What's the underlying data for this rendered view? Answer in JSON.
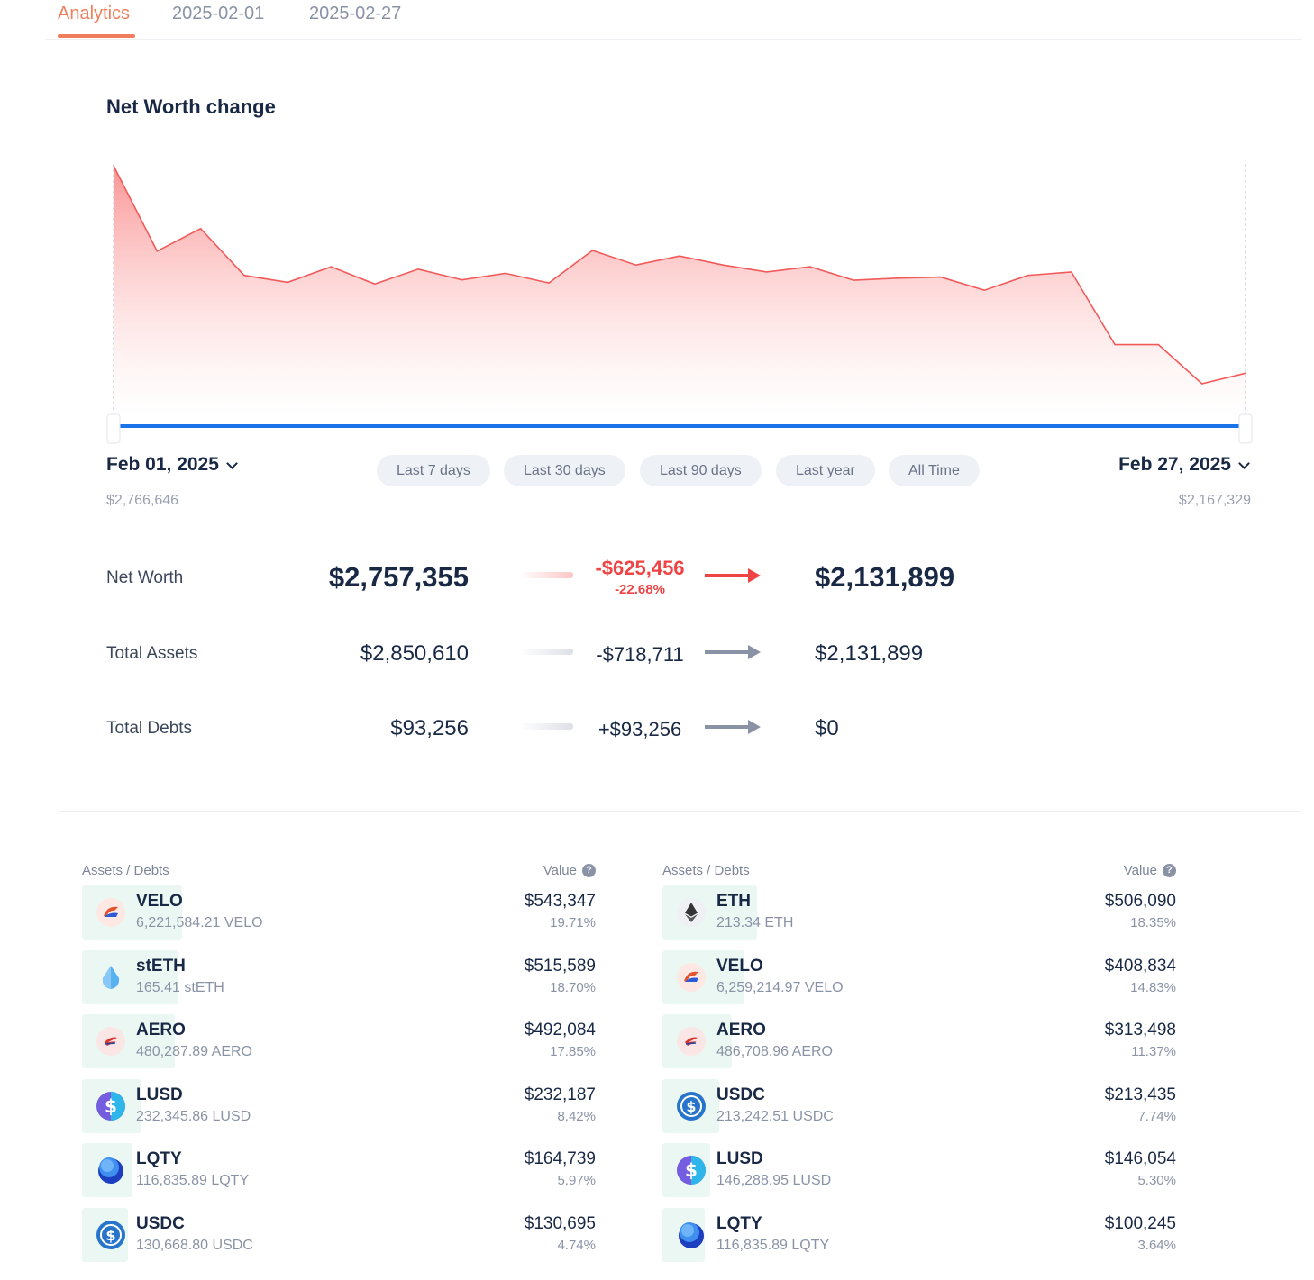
{
  "tabs": [
    "Analytics",
    "2025-02-01",
    "2025-02-27"
  ],
  "section_title": "Net Worth change",
  "colors": {
    "accent": "#f07e5c",
    "negative": "#ef4444",
    "range_bar": "#1a73e8",
    "asset_bar": "#eaf7f2"
  },
  "chart_data": {
    "type": "area",
    "title": "",
    "xlabel": "",
    "ylabel": "",
    "x": [
      "2025-02-01",
      "2025-02-02",
      "2025-02-03",
      "2025-02-04",
      "2025-02-05",
      "2025-02-06",
      "2025-02-07",
      "2025-02-08",
      "2025-02-09",
      "2025-02-10",
      "2025-02-11",
      "2025-02-12",
      "2025-02-13",
      "2025-02-14",
      "2025-02-15",
      "2025-02-16",
      "2025-02-17",
      "2025-02-18",
      "2025-02-19",
      "2025-02-20",
      "2025-02-21",
      "2025-02-22",
      "2025-02-23",
      "2025-02-24",
      "2025-02-25",
      "2025-02-26",
      "2025-02-27"
    ],
    "values": [
      2766646,
      2520000,
      2585000,
      2450000,
      2430000,
      2475000,
      2425000,
      2468000,
      2437000,
      2456000,
      2428000,
      2522000,
      2480000,
      2506000,
      2480000,
      2460000,
      2475000,
      2436000,
      2442000,
      2445000,
      2407000,
      2450000,
      2460000,
      2250000,
      2250000,
      2137000,
      2167329
    ],
    "ylim": [
      2137000,
      2766646
    ],
    "grid": false
  },
  "range": {
    "start_label": "Feb 01, 2025",
    "start_value": "$2,766,646",
    "end_label": "Feb 27, 2025",
    "end_value": "$2,167,329"
  },
  "presets": [
    "Last 7 days",
    "Last 30 days",
    "Last 90 days",
    "Last year",
    "All Time"
  ],
  "summary": {
    "net_worth": {
      "label": "Net Worth",
      "from": "$2,757,355",
      "delta": "-$625,456",
      "pct": "-22.68%",
      "to": "$2,131,899"
    },
    "assets": {
      "label": "Total Assets",
      "from": "$2,850,610",
      "delta": "-$718,711",
      "to": "$2,131,899"
    },
    "debts": {
      "label": "Total Debts",
      "from": "$93,256",
      "delta": "+$93,256",
      "to": "$0"
    }
  },
  "table_headers": {
    "name": "Assets / Debts",
    "value": "Value",
    "help": "?"
  },
  "left_assets": [
    {
      "symbol": "VELO",
      "amount": "6,221,584.21 VELO",
      "value": "$543,347",
      "pct": "19.71%",
      "share": 0.1971,
      "icon": "velo-icon"
    },
    {
      "symbol": "stETH",
      "amount": "165.41 stETH",
      "value": "$515,589",
      "pct": "18.70%",
      "share": 0.187,
      "icon": "steth-icon"
    },
    {
      "symbol": "AERO",
      "amount": "480,287.89 AERO",
      "value": "$492,084",
      "pct": "17.85%",
      "share": 0.1785,
      "icon": "aero-icon"
    },
    {
      "symbol": "LUSD",
      "amount": "232,345.86 LUSD",
      "value": "$232,187",
      "pct": "8.42%",
      "share": 0.0842,
      "icon": "lusd-icon"
    },
    {
      "symbol": "LQTY",
      "amount": "116,835.89 LQTY",
      "value": "$164,739",
      "pct": "5.97%",
      "share": 0.0597,
      "icon": "lqty-icon"
    },
    {
      "symbol": "USDC",
      "amount": "130,668.80 USDC",
      "value": "$130,695",
      "pct": "4.74%",
      "share": 0.0474,
      "icon": "usdc-icon"
    }
  ],
  "right_assets": [
    {
      "symbol": "ETH",
      "amount": "213.34 ETH",
      "value": "$506,090",
      "pct": "18.35%",
      "share": 0.1835,
      "icon": "eth-icon"
    },
    {
      "symbol": "VELO",
      "amount": "6,259,214.97 VELO",
      "value": "$408,834",
      "pct": "14.83%",
      "share": 0.1483,
      "icon": "velo-icon"
    },
    {
      "symbol": "AERO",
      "amount": "486,708.96 AERO",
      "value": "$313,498",
      "pct": "11.37%",
      "share": 0.1137,
      "icon": "aero-icon"
    },
    {
      "symbol": "USDC",
      "amount": "213,242.51 USDC",
      "value": "$213,435",
      "pct": "7.74%",
      "share": 0.0774,
      "icon": "usdc-icon"
    },
    {
      "symbol": "LUSD",
      "amount": "146,288.95 LUSD",
      "value": "$146,054",
      "pct": "5.30%",
      "share": 0.053,
      "icon": "lusd-icon"
    },
    {
      "symbol": "LQTY",
      "amount": "116,835.89 LQTY",
      "value": "$100,245",
      "pct": "3.64%",
      "share": 0.0364,
      "icon": "lqty-icon"
    }
  ]
}
